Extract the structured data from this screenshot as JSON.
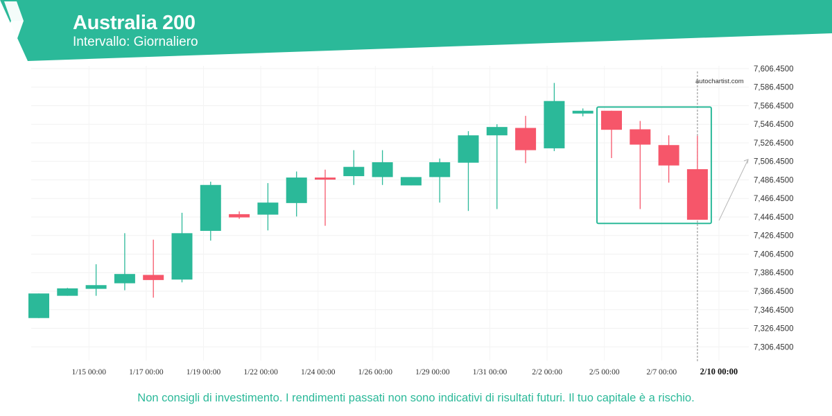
{
  "header": {
    "title": "Australia 200",
    "subtitle": "Intervallo: Giornaliero",
    "brand_color": "#2bb999"
  },
  "watermark": "autochartist.com",
  "disclaimer": "Non consigli di investimento. I rendimenti passati non sono indicativi di risultati futuri. Il tuo capitale è a rischio.",
  "colors": {
    "up": "#2bb999",
    "down": "#f6566a",
    "pattern_box": "#2bb999",
    "projection": "#b5b5b5"
  },
  "chart_data": {
    "type": "candlestick",
    "x_ticks": [
      "1/15 00:00",
      "1/17 00:00",
      "1/19 00:00",
      "1/22 00:00",
      "1/24 00:00",
      "1/26 00:00",
      "1/29 00:00",
      "1/31 00:00",
      "2/2 00:00",
      "2/5 00:00",
      "2/7 00:00",
      "2/10 00:00"
    ],
    "y_ticks": [
      "7,606.4500",
      "7,586.4500",
      "7,566.4500",
      "7,546.4500",
      "7,526.4500",
      "7,506.4500",
      "7,486.4500",
      "7,466.4500",
      "7,446.4500",
      "7,426.4500",
      "7,406.4500",
      "7,386.4500",
      "7,366.4500",
      "7,346.4500",
      "7,326.4500",
      "7,306.4500"
    ],
    "ylim": [
      7291.7,
      7609.4
    ],
    "highlighted_tick": "2/10 00:00",
    "grid": true,
    "candles": [
      {
        "o": 7337.5,
        "h": 7364.0,
        "l": 7337.5,
        "c": 7364.0
      },
      {
        "o": 7361.5,
        "h": 7370.0,
        "l": 7361.5,
        "c": 7369.5
      },
      {
        "o": 7369.0,
        "h": 7395.5,
        "l": 7361.5,
        "c": 7373.0
      },
      {
        "o": 7375.0,
        "h": 7429.0,
        "l": 7367.5,
        "c": 7385.0
      },
      {
        "o": 7384.0,
        "h": 7422.0,
        "l": 7359.5,
        "c": 7378.5
      },
      {
        "o": 7379.0,
        "h": 7451.0,
        "l": 7376.0,
        "c": 7429.0
      },
      {
        "o": 7431.5,
        "h": 7484.5,
        "l": 7421.0,
        "c": 7481.0
      },
      {
        "o": 7449.5,
        "h": 7452.5,
        "l": 7444.5,
        "c": 7446.0
      },
      {
        "o": 7449.0,
        "h": 7483.0,
        "l": 7432.0,
        "c": 7462.0
      },
      {
        "o": 7461.5,
        "h": 7495.5,
        "l": 7447.0,
        "c": 7489.0
      },
      {
        "o": 7489.0,
        "h": 7497.5,
        "l": 7437.0,
        "c": 7488.0
      },
      {
        "o": 7490.5,
        "h": 7518.5,
        "l": 7481.0,
        "c": 7500.5
      },
      {
        "o": 7489.5,
        "h": 7518.5,
        "l": 7481.0,
        "c": 7505.5
      },
      {
        "o": 7480.5,
        "h": 7489.5,
        "l": 7480.5,
        "c": 7489.5
      },
      {
        "o": 7489.5,
        "h": 7509.5,
        "l": 7462.0,
        "c": 7505.5
      },
      {
        "o": 7505.0,
        "h": 7539.0,
        "l": 7453.0,
        "c": 7534.5
      },
      {
        "o": 7534.5,
        "h": 7546.5,
        "l": 7455.0,
        "c": 7543.5
      },
      {
        "o": 7542.5,
        "h": 7555.5,
        "l": 7504.5,
        "c": 7518.5
      },
      {
        "o": 7520.5,
        "h": 7591.0,
        "l": 7517.5,
        "c": 7571.5
      },
      {
        "o": 7558.0,
        "h": 7563.5,
        "l": 7555.0,
        "c": 7561.0
      },
      {
        "o": 7561.0,
        "h": 7561.0,
        "l": 7510.0,
        "c": 7540.5
      },
      {
        "o": 7541.0,
        "h": 7550.0,
        "l": 7455.0,
        "c": 7524.5
      },
      {
        "o": 7524.0,
        "h": 7534.5,
        "l": 7483.5,
        "c": 7502.0
      },
      {
        "o": 7498.0,
        "h": 7534.0,
        "l": 7443.5,
        "c": 7443.5
      }
    ],
    "pattern_box": {
      "from_candle": 20,
      "to_candle": 23,
      "top": 7565.0,
      "bottom": 7439.5
    },
    "projection": {
      "from": 7443.5,
      "to": 7508.5
    }
  }
}
